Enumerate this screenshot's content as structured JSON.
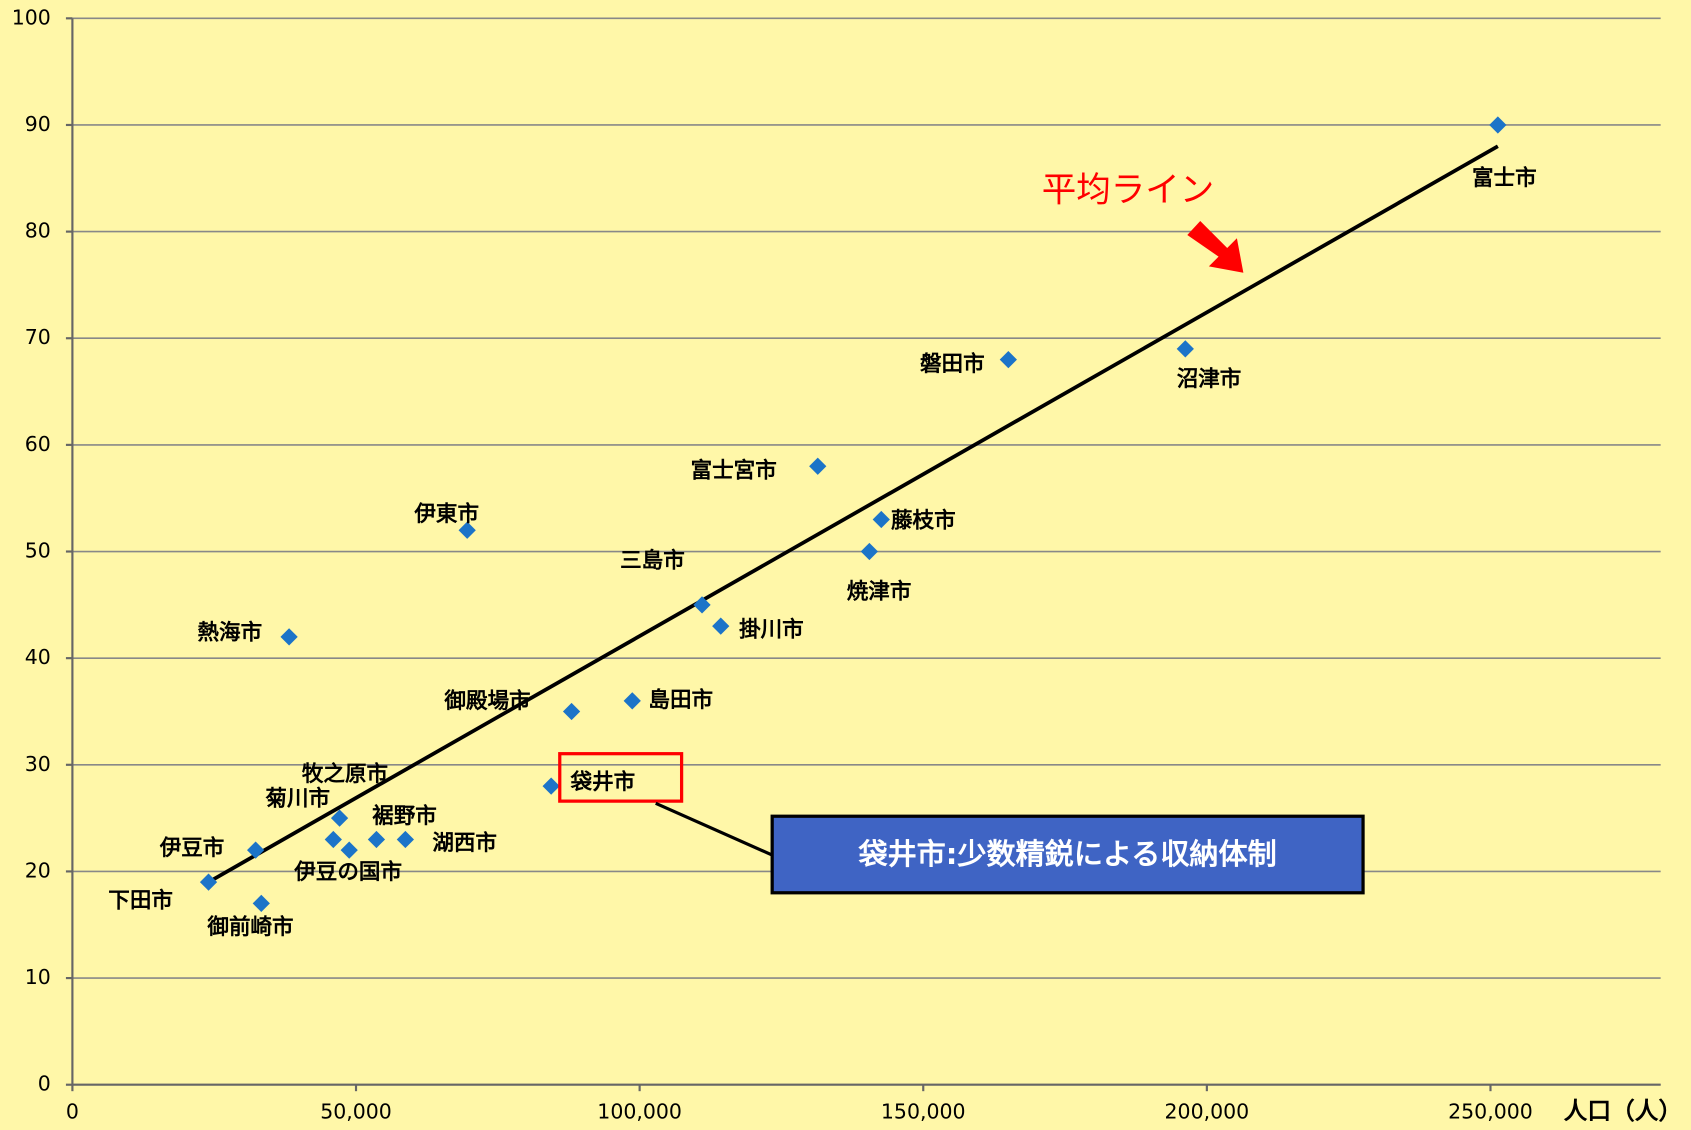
{
  "chart_data": {
    "type": "scatter",
    "x_axis_label": "人口（人）",
    "x": [
      251300,
      196200,
      165000,
      131400,
      142600,
      140500,
      111000,
      114300,
      69600,
      38200,
      98700,
      88000,
      84400,
      47100,
      46000,
      48800,
      53600,
      58700,
      32300,
      24000,
      33300
    ],
    "y": [
      90,
      69,
      68,
      58,
      53,
      50,
      45,
      43,
      52,
      42,
      36,
      35,
      28,
      25,
      23,
      22,
      23,
      23,
      22,
      19,
      17
    ],
    "labels": [
      "富士市",
      "沼津市",
      "磐田市",
      "富士宮市",
      "藤枝市",
      "焼津市",
      "三島市",
      "掛川市",
      "伊東市",
      "熱海市",
      "島田市",
      "御殿場市",
      "袋井市",
      "牧之原市",
      "菊川市",
      "伊豆の国市",
      "裾野市",
      "湖西市",
      "伊豆市",
      "下田市",
      "御前崎市"
    ],
    "color": "#1c74c8",
    "trendline": {
      "x": [
        24000,
        251300
      ],
      "y": [
        19,
        88
      ],
      "color": "#000000"
    },
    "annotations": {
      "average_line": "平均ライン",
      "callout": "袋井市:少数精鋭による収納体制"
    },
    "xlim": [
      0,
      280000
    ],
    "xticks": [
      0,
      {
        "value": 50000,
        "label": "50,000"
      },
      {
        "value": 100000,
        "label": "100,000"
      },
      {
        "value": 150000,
        "label": "150,000"
      },
      {
        "value": 200000,
        "label": "200,000"
      },
      {
        "value": 250000,
        "label": "250,000"
      }
    ],
    "ylim": [
      0,
      100
    ],
    "yticks": [
      0,
      10,
      20,
      30,
      40,
      50,
      60,
      70,
      80,
      90,
      100
    ],
    "grid": true
  }
}
